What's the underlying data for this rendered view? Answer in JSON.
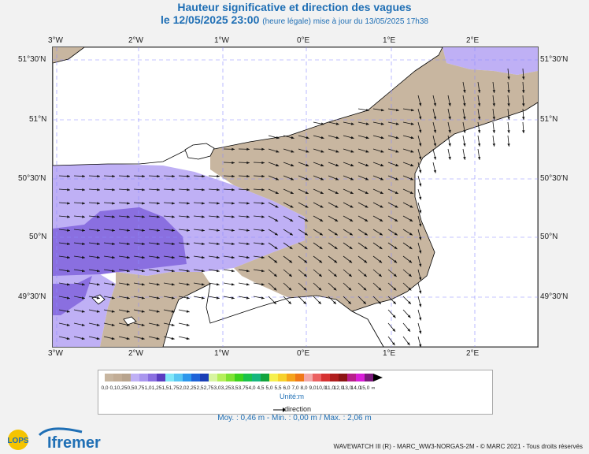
{
  "title": {
    "line1": "Hauteur significative et direction des vagues",
    "date": "le 12/05/2025 23:00",
    "sub": "(heure légale) mise à jour du 13/05/2025 17h38"
  },
  "axes": {
    "lon_labels": [
      "3°W",
      "2°W",
      "1°W",
      "0°E",
      "1°E",
      "2°E"
    ],
    "lat_labels": [
      "51°30'N",
      "51°N",
      "50°30'N",
      "50°N",
      "49°30'N"
    ]
  },
  "legend": {
    "ticks": [
      "0,0",
      "0,1",
      "0,25",
      "0,5",
      "0,75",
      "1,0",
      "1,25",
      "1,5",
      "1,75",
      "2,0",
      "2,25",
      "2,5",
      "2,75",
      "3,0",
      "3,25",
      "3,5",
      "3,75",
      "4,0",
      "4,5",
      "5,0",
      "5,5",
      "6,0",
      "7,0",
      "8,0",
      "9,0",
      "10,0",
      "11,0",
      "12,0",
      "13,0",
      "14,0",
      "15,0",
      "∞"
    ],
    "colors": [
      "#c8b6a0",
      "#c2ad96",
      "#b8a48e",
      "#bfb0f5",
      "#a996ee",
      "#8a6fe0",
      "#5a3cc0",
      "#7fe7f7",
      "#58c6f2",
      "#2d97ec",
      "#1e63d8",
      "#1b3fb6",
      "#d8f5a0",
      "#b5ef5a",
      "#7ee232",
      "#3cd21c",
      "#19c24a",
      "#16b67e",
      "#12a43e",
      "#f6f04e",
      "#f7d12c",
      "#f5a31c",
      "#f07818",
      "#f3a7a7",
      "#eb6060",
      "#d63232",
      "#b01e1e",
      "#8c1414",
      "#b81e8a",
      "#d81ed8",
      "#7a1a7a"
    ],
    "unit": "Unité:m",
    "direction_label": "direction"
  },
  "stats": {
    "text": "Moy. : 0,46 m   -   Min. : 0,00 m / Max. : 2,06 m"
  },
  "footer": {
    "credit": "WAVEWATCH III (R) - MARC_WW3-NORGAS-2M - © MARC 2021 - Tous droits réservés",
    "logo": "Ifremer",
    "lops": "LOPS"
  }
}
